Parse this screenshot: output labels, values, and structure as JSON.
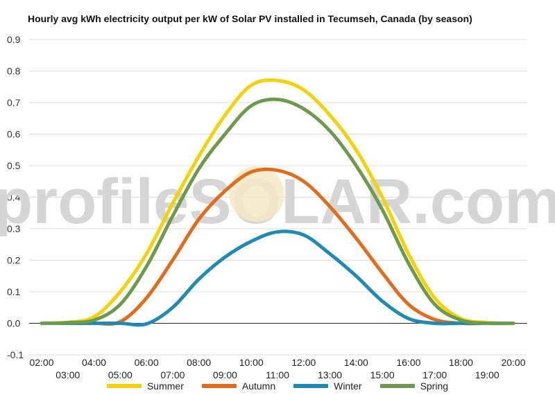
{
  "chart_data": {
    "type": "line",
    "title": "Hourly avg kWh electricity output per kW of Solar PV installed in Tecumseh, Canada (by season)",
    "watermark": "profileSOLAR.com",
    "xlabel": "",
    "ylabel": "",
    "ylim": [
      -0.1,
      0.9
    ],
    "yticks": [
      "0.9",
      "0.8",
      "0.7",
      "0.6",
      "0.5",
      "0.4",
      "0.3",
      "0.2",
      "0.1",
      "0.0",
      "-0.1"
    ],
    "x": [
      "02:00",
      "03:00",
      "04:00",
      "05:00",
      "06:00",
      "07:00",
      "08:00",
      "09:00",
      "10:00",
      "11:00",
      "12:00",
      "13:00",
      "14:00",
      "15:00",
      "16:00",
      "17:00",
      "18:00",
      "19:00",
      "20:00"
    ],
    "grid": true,
    "legend_position": "bottom",
    "series": [
      {
        "name": "Summer",
        "color": "#f5d108",
        "values": [
          0.0,
          0.003,
          0.02,
          0.1,
          0.22,
          0.38,
          0.53,
          0.66,
          0.755,
          0.77,
          0.74,
          0.66,
          0.55,
          0.4,
          0.22,
          0.08,
          0.015,
          0.002,
          0.0
        ]
      },
      {
        "name": "Autumn",
        "color": "#e36b1c",
        "values": [
          0.0,
          0.0,
          0.0,
          0.005,
          0.08,
          0.2,
          0.33,
          0.42,
          0.48,
          0.485,
          0.45,
          0.37,
          0.27,
          0.16,
          0.06,
          0.012,
          0.0,
          0.0,
          0.0
        ]
      },
      {
        "name": "Winter",
        "color": "#1e8ab5",
        "values": [
          0.0,
          0.0,
          0.0,
          0.0,
          -0.002,
          0.05,
          0.14,
          0.21,
          0.26,
          0.29,
          0.28,
          0.22,
          0.15,
          0.07,
          0.015,
          0.0,
          0.0,
          0.0,
          0.0
        ]
      },
      {
        "name": "Spring",
        "color": "#6e9a4d",
        "values": [
          0.0,
          0.002,
          0.01,
          0.06,
          0.18,
          0.34,
          0.49,
          0.6,
          0.69,
          0.71,
          0.68,
          0.61,
          0.5,
          0.36,
          0.19,
          0.06,
          0.01,
          0.0,
          0.0
        ]
      }
    ]
  }
}
